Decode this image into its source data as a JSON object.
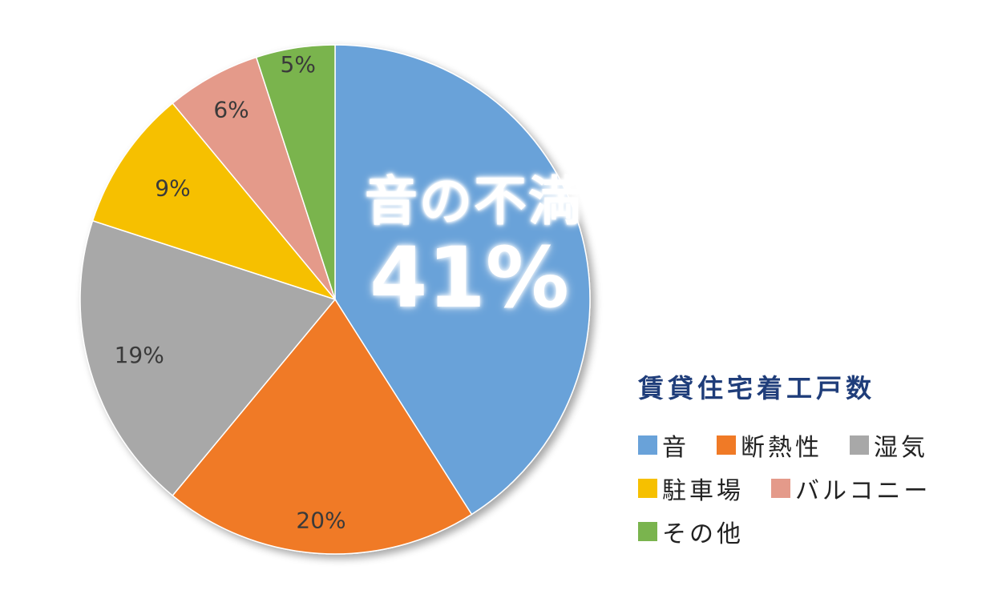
{
  "chart_data": {
    "type": "pie",
    "title": "",
    "categories": [
      "音",
      "断熱性",
      "湿気",
      "駐車場",
      "バルコニー",
      "その他"
    ],
    "values": [
      41,
      20,
      19,
      9,
      6,
      5
    ],
    "value_labels": [
      "41%",
      "20%",
      "19%",
      "9%",
      "6%",
      "5%"
    ],
    "colors": [
      "#69a2d9",
      "#f07a26",
      "#a8a8a8",
      "#f6c000",
      "#e49a8a",
      "#7ab44e"
    ],
    "start_angle_deg": 0,
    "direction": "clockwise",
    "callout": {
      "title": "音の不満",
      "value": "41%"
    },
    "legend": {
      "title": "賃貸住宅着工戸数",
      "placement": "bottom-right",
      "rows": [
        [
          {
            "label": "音",
            "color": "#69a2d9"
          },
          {
            "label": "断熱性",
            "color": "#f07a26"
          },
          {
            "label": "湿気",
            "color": "#a8a8a8"
          }
        ],
        [
          {
            "label": "駐車場",
            "color": "#f6c000"
          },
          {
            "label": "バルコニー",
            "color": "#e49a8a"
          }
        ],
        [
          {
            "label": "その他",
            "color": "#7ab44e"
          }
        ]
      ]
    }
  }
}
